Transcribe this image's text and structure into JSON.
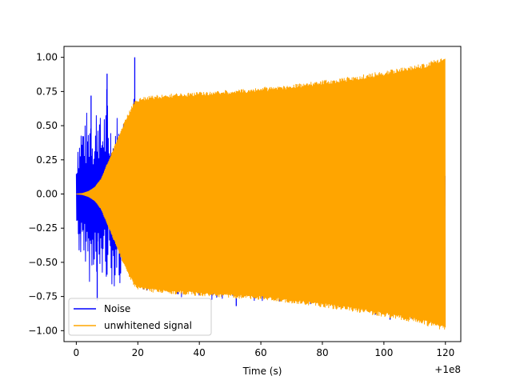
{
  "chart_data": {
    "type": "line",
    "title": "",
    "xlabel": "Time (s)",
    "ylabel": "",
    "x_offset_label": "+1e8",
    "xlim": [
      -4,
      125
    ],
    "ylim": [
      -1.08,
      1.08
    ],
    "x_ticks": [
      0,
      20,
      40,
      60,
      80,
      100,
      120
    ],
    "x_tick_labels": [
      "0",
      "20",
      "40",
      "60",
      "80",
      "100",
      "120"
    ],
    "y_ticks": [
      1.0,
      0.75,
      0.5,
      0.25,
      0.0,
      -0.25,
      -0.5,
      -0.75,
      -1.0
    ],
    "y_tick_labels": [
      "1.00",
      "0.75",
      "0.50",
      "0.25",
      "0.00",
      "−0.25",
      "−0.50",
      "−0.75",
      "−1.00"
    ],
    "grid": false,
    "legend_position": "lower-left",
    "series": [
      {
        "name": "Noise",
        "color": "#0000ff",
        "x_range": [
          0,
          120
        ],
        "upper_envelope": [
          [
            0,
            0.22
          ],
          [
            0.5,
            0.48
          ],
          [
            1,
            0.45
          ],
          [
            1.5,
            0.55
          ],
          [
            2,
            0.52
          ],
          [
            2.5,
            0.62
          ],
          [
            3,
            0.48
          ],
          [
            3.5,
            0.65
          ],
          [
            4,
            0.52
          ],
          [
            4.5,
            0.72
          ],
          [
            5,
            0.6
          ],
          [
            5.5,
            0.53
          ],
          [
            6,
            0.47
          ],
          [
            6.5,
            0.68
          ],
          [
            7,
            0.72
          ],
          [
            7.5,
            0.65
          ],
          [
            8,
            0.52
          ],
          [
            8.5,
            0.58
          ],
          [
            9,
            0.68
          ],
          [
            9.5,
            0.55
          ],
          [
            10,
            0.88
          ],
          [
            10.5,
            0.5
          ],
          [
            11,
            0.58
          ],
          [
            12,
            0.45
          ],
          [
            13,
            0.62
          ],
          [
            14,
            0.52
          ],
          [
            15,
            0.56
          ],
          [
            16,
            0.58
          ],
          [
            17,
            0.57
          ],
          [
            18,
            0.45
          ],
          [
            19,
            1.0
          ],
          [
            20,
            0.62
          ],
          [
            22,
            0.58
          ],
          [
            25,
            0.5
          ],
          [
            30,
            0.45
          ],
          [
            40,
            0.42
          ],
          [
            50,
            0.4
          ],
          [
            60,
            0.35
          ],
          [
            80,
            0.3
          ],
          [
            100,
            0.25
          ],
          [
            120,
            0.2
          ]
        ],
        "lower_envelope": [
          [
            0,
            -0.22
          ],
          [
            0.5,
            -0.42
          ],
          [
            1,
            -0.45
          ],
          [
            1.5,
            -0.5
          ],
          [
            2,
            -0.55
          ],
          [
            2.5,
            -0.62
          ],
          [
            3,
            -0.5
          ],
          [
            3.5,
            -0.58
          ],
          [
            4,
            -0.6
          ],
          [
            4.5,
            -0.68
          ],
          [
            5,
            -0.62
          ],
          [
            5.5,
            -0.55
          ],
          [
            6,
            -0.5
          ],
          [
            6.5,
            -0.75
          ],
          [
            7,
            -0.68
          ],
          [
            7.5,
            -0.72
          ],
          [
            8,
            -0.55
          ],
          [
            8.5,
            -0.65
          ],
          [
            9,
            -0.6
          ],
          [
            9.5,
            -0.58
          ],
          [
            10,
            -0.65
          ],
          [
            10.5,
            -0.52
          ],
          [
            11,
            -0.62
          ],
          [
            12,
            -0.72
          ],
          [
            13,
            -0.6
          ],
          [
            14,
            -0.75
          ],
          [
            15,
            -0.52
          ],
          [
            16,
            -0.62
          ],
          [
            17,
            -0.55
          ],
          [
            18,
            -0.6
          ],
          [
            19,
            -0.7
          ],
          [
            20,
            -0.72
          ],
          [
            25,
            -0.7
          ],
          [
            30,
            -0.72
          ],
          [
            35,
            -0.78
          ],
          [
            40,
            -0.75
          ],
          [
            52,
            -0.82
          ],
          [
            60,
            -0.78
          ],
          [
            80,
            -0.82
          ],
          [
            100,
            -0.9
          ],
          [
            102,
            -0.92
          ],
          [
            120,
            -0.95
          ]
        ]
      },
      {
        "name": "unwhitened signal",
        "color": "#ffa500",
        "x_range": [
          0,
          120
        ],
        "upper_envelope": [
          [
            0,
            0.0
          ],
          [
            2,
            0.005
          ],
          [
            4,
            0.02
          ],
          [
            6,
            0.05
          ],
          [
            8,
            0.11
          ],
          [
            10,
            0.22
          ],
          [
            12,
            0.33
          ],
          [
            14,
            0.44
          ],
          [
            16,
            0.55
          ],
          [
            18,
            0.64
          ],
          [
            19,
            0.68
          ],
          [
            20,
            0.7
          ],
          [
            22,
            0.71
          ],
          [
            25,
            0.72
          ],
          [
            30,
            0.73
          ],
          [
            40,
            0.745
          ],
          [
            50,
            0.76
          ],
          [
            60,
            0.775
          ],
          [
            61,
            0.79
          ],
          [
            62,
            0.78
          ],
          [
            70,
            0.8
          ],
          [
            80,
            0.83
          ],
          [
            90,
            0.86
          ],
          [
            100,
            0.9
          ],
          [
            110,
            0.94
          ],
          [
            115,
            0.97
          ],
          [
            120,
            1.0
          ]
        ],
        "lower_envelope": [
          [
            0,
            0.0
          ],
          [
            2,
            -0.005
          ],
          [
            4,
            -0.02
          ],
          [
            6,
            -0.05
          ],
          [
            8,
            -0.11
          ],
          [
            10,
            -0.22
          ],
          [
            12,
            -0.33
          ],
          [
            14,
            -0.44
          ],
          [
            16,
            -0.55
          ],
          [
            18,
            -0.64
          ],
          [
            19,
            -0.68
          ],
          [
            20,
            -0.7
          ],
          [
            22,
            -0.71
          ],
          [
            25,
            -0.72
          ],
          [
            30,
            -0.73
          ],
          [
            40,
            -0.745
          ],
          [
            50,
            -0.76
          ],
          [
            60,
            -0.775
          ],
          [
            70,
            -0.8
          ],
          [
            80,
            -0.83
          ],
          [
            90,
            -0.86
          ],
          [
            100,
            -0.9
          ],
          [
            110,
            -0.94
          ],
          [
            115,
            -0.97
          ],
          [
            120,
            -1.0
          ]
        ]
      }
    ]
  }
}
